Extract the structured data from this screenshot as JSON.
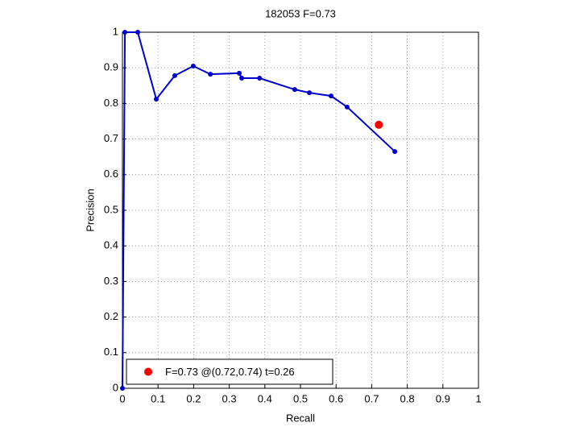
{
  "chart_data": {
    "type": "line",
    "title": "182053 F=0.73",
    "x_label": "Recall",
    "y_label": "Precision",
    "xlim": [
      0,
      1
    ],
    "ylim": [
      0,
      1
    ],
    "xticks": [
      0,
      0.1,
      0.2,
      0.3,
      0.4,
      0.5,
      0.6,
      0.7,
      0.8,
      0.9,
      1
    ],
    "yticks": [
      0,
      0.1,
      0.2,
      0.3,
      0.4,
      0.5,
      0.6,
      0.7,
      0.8,
      0.9,
      1
    ],
    "grid": true,
    "legend": "lower left",
    "series": [
      {
        "color": "#0000cc",
        "x": [
          0,
          0.007,
          0.043,
          0.095,
          0.147,
          0.199,
          0.247,
          0.328,
          0.335,
          0.385,
          0.484,
          0.525,
          0.586,
          0.631,
          0.765
        ],
        "values": [
          0,
          1,
          1,
          0.812,
          0.878,
          0.905,
          0.882,
          0.885,
          0.871,
          0.871,
          0.839,
          0.83,
          0.821,
          0.79,
          0.665
        ]
      },
      {
        "type": "scatter",
        "name": "F=0.73 @(0.72,0.74) t=0.26",
        "color": "#ff0000",
        "x": [
          0.72
        ],
        "values": [
          0.74
        ]
      }
    ]
  }
}
